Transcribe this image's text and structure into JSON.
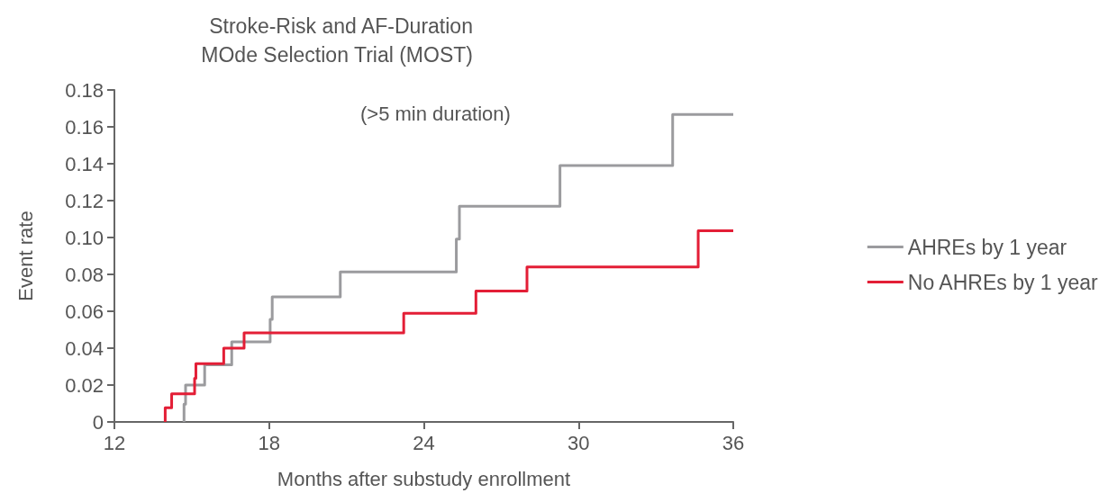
{
  "chart_data": {
    "type": "step",
    "title": "Stroke-Risk and AF-Duration\nMOde Selection Trial (MOST)",
    "xlabel": "Months after substudy enrollment",
    "ylabel": "Event rate",
    "annotations": [
      "(>5 min duration)"
    ],
    "series": [
      {
        "name": "AHREs by 1 year",
        "color": "#9b9b9e",
        "x": [
          14.7,
          14.7,
          14.76,
          15.5,
          16.55,
          18.04,
          18.12,
          20.76,
          25.26,
          25.38,
          29.28,
          33.65,
          36
        ],
        "values": [
          0,
          0.0096,
          0.02,
          0.031,
          0.0434,
          0.0556,
          0.0678,
          0.0813,
          0.0992,
          0.117,
          0.139,
          0.1667,
          0.1667
        ]
      },
      {
        "name": "No AHREs by 1 year",
        "color": "#e31e36",
        "x": [
          13.97,
          13.97,
          14.22,
          15.11,
          15.16,
          16.24,
          17.03,
          23.22,
          26.02,
          28.0,
          34.64,
          36
        ],
        "values": [
          0,
          0.0077,
          0.0153,
          0.0236,
          0.0316,
          0.04,
          0.0483,
          0.0589,
          0.071,
          0.084,
          0.1036,
          0.1036
        ]
      }
    ],
    "xlim": [
      12,
      36
    ],
    "xticks": [
      12,
      18,
      24,
      30,
      36
    ],
    "ylim": [
      0,
      0.18
    ],
    "yticks": [
      0,
      0.02,
      0.04,
      0.06,
      0.08,
      {
        "value": 0.1,
        "label": "0.10"
      },
      0.12,
      0.14,
      0.16,
      0.18
    ],
    "grid": false,
    "legend": "right",
    "marker": "none",
    "line_style": "solid"
  }
}
